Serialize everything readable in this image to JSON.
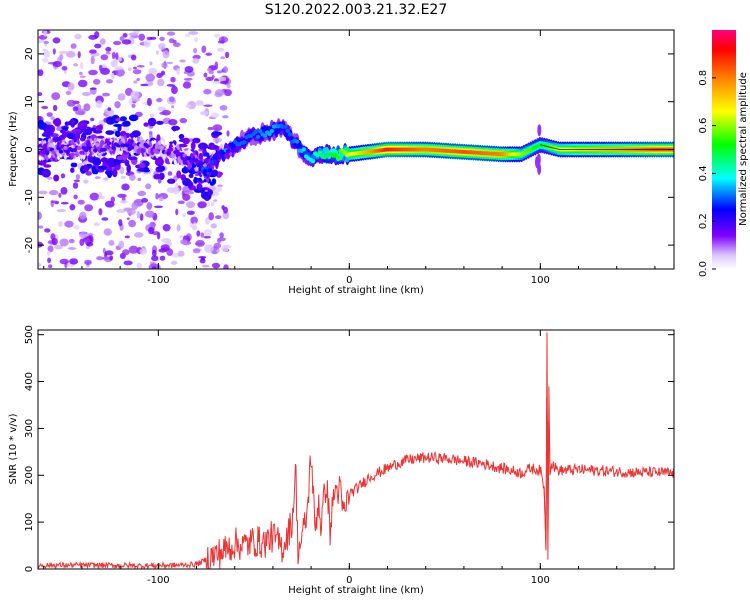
{
  "figure": {
    "title": "S120.2022.003.21.32.E27"
  },
  "chart_data": [
    {
      "type": "heatmap",
      "title": "S120.2022.003.21.32.E27",
      "xlabel": "Height of straight line (km)",
      "ylabel": "Frequency (Hz)",
      "xlim": [
        -163,
        170
      ],
      "ylim": [
        -25,
        25
      ],
      "x_ticks": [
        -100,
        0,
        100
      ],
      "x_tick_labels": [
        "-100",
        "0",
        "100"
      ],
      "y_ticks": [
        -20,
        -10,
        0,
        10,
        20
      ],
      "y_tick_labels": [
        "-20",
        "-10",
        "0",
        "10",
        "20"
      ],
      "colorbar": {
        "label": "Normalized spectral amplitude",
        "range": [
          0,
          1
        ],
        "ticks": [
          0.0,
          0.2,
          0.4,
          0.6,
          0.8
        ],
        "tick_labels": [
          "0.0",
          "0.2",
          "0.4",
          "0.6",
          "0.8"
        ],
        "colormap": "rainbow (white/violet low to red/magenta high)"
      },
      "ridge": {
        "x": [
          -163,
          -140,
          -120,
          -100,
          -90,
          -80,
          -75,
          -70,
          -60,
          -50,
          -40,
          -35,
          -30,
          -25,
          -20,
          -15,
          -10,
          -5,
          0,
          10,
          20,
          40,
          60,
          80,
          90,
          95,
          100,
          110,
          120,
          140,
          160,
          170
        ],
        "freq": [
          0,
          0,
          1,
          0,
          -1,
          -3,
          -5,
          -2,
          1,
          3,
          4,
          5,
          2,
          0,
          -2,
          -1,
          -1,
          -1,
          -1,
          -0.5,
          0,
          0,
          -0.5,
          -1,
          -1,
          0,
          1,
          0,
          0,
          0,
          0,
          0
        ],
        "amplitude": [
          0.15,
          0.15,
          0.15,
          0.15,
          0.15,
          0.2,
          0.3,
          0.25,
          0.3,
          0.3,
          0.35,
          0.3,
          0.3,
          0.35,
          0.4,
          0.45,
          0.5,
          0.55,
          0.65,
          0.75,
          0.9,
          0.8,
          0.85,
          0.8,
          0.6,
          0.55,
          0.5,
          0.65,
          0.7,
          0.75,
          0.85,
          0.85
        ]
      }
    },
    {
      "type": "line",
      "xlabel": "Height of straight line (km)",
      "ylabel": "SNR (10 * v/v)",
      "xlim": [
        -163,
        170
      ],
      "ylim": [
        0,
        510
      ],
      "x_ticks": [
        -100,
        0,
        100
      ],
      "x_tick_labels": [
        "-100",
        "0",
        "100"
      ],
      "y_ticks": [
        0,
        100,
        200,
        300,
        400,
        500
      ],
      "y_tick_labels": [
        "0",
        "100",
        "200",
        "300",
        "400",
        "500"
      ],
      "color": "#ee3333",
      "series": [
        {
          "x": [
            -163,
            -150,
            -130,
            -110,
            -90,
            -80,
            -75,
            -70,
            -65,
            -60,
            -55,
            -50,
            -45,
            -40,
            -35,
            -30,
            -28,
            -27,
            -25,
            -22,
            -20,
            -18,
            -16,
            -15,
            -12,
            -10,
            -8,
            -5,
            -3,
            0,
            5,
            10,
            15,
            20,
            25,
            30,
            40,
            50,
            60,
            70,
            80,
            90,
            95,
            100,
            102,
            103,
            103.5,
            104,
            104.5,
            105,
            106,
            108,
            110,
            120,
            130,
            140,
            150,
            160,
            170
          ],
          "y": [
            8,
            8,
            8,
            7,
            8,
            10,
            20,
            30,
            40,
            55,
            50,
            60,
            55,
            70,
            45,
            100,
            215,
            40,
            60,
            120,
            255,
            80,
            150,
            90,
            190,
            80,
            165,
            170,
            115,
            160,
            175,
            195,
            205,
            215,
            225,
            232,
            238,
            236,
            230,
            225,
            215,
            205,
            215,
            210,
            175,
            40,
            505,
            20,
            390,
            200,
            225,
            215,
            210,
            212,
            210,
            208,
            206,
            206,
            204
          ]
        }
      ]
    }
  ]
}
